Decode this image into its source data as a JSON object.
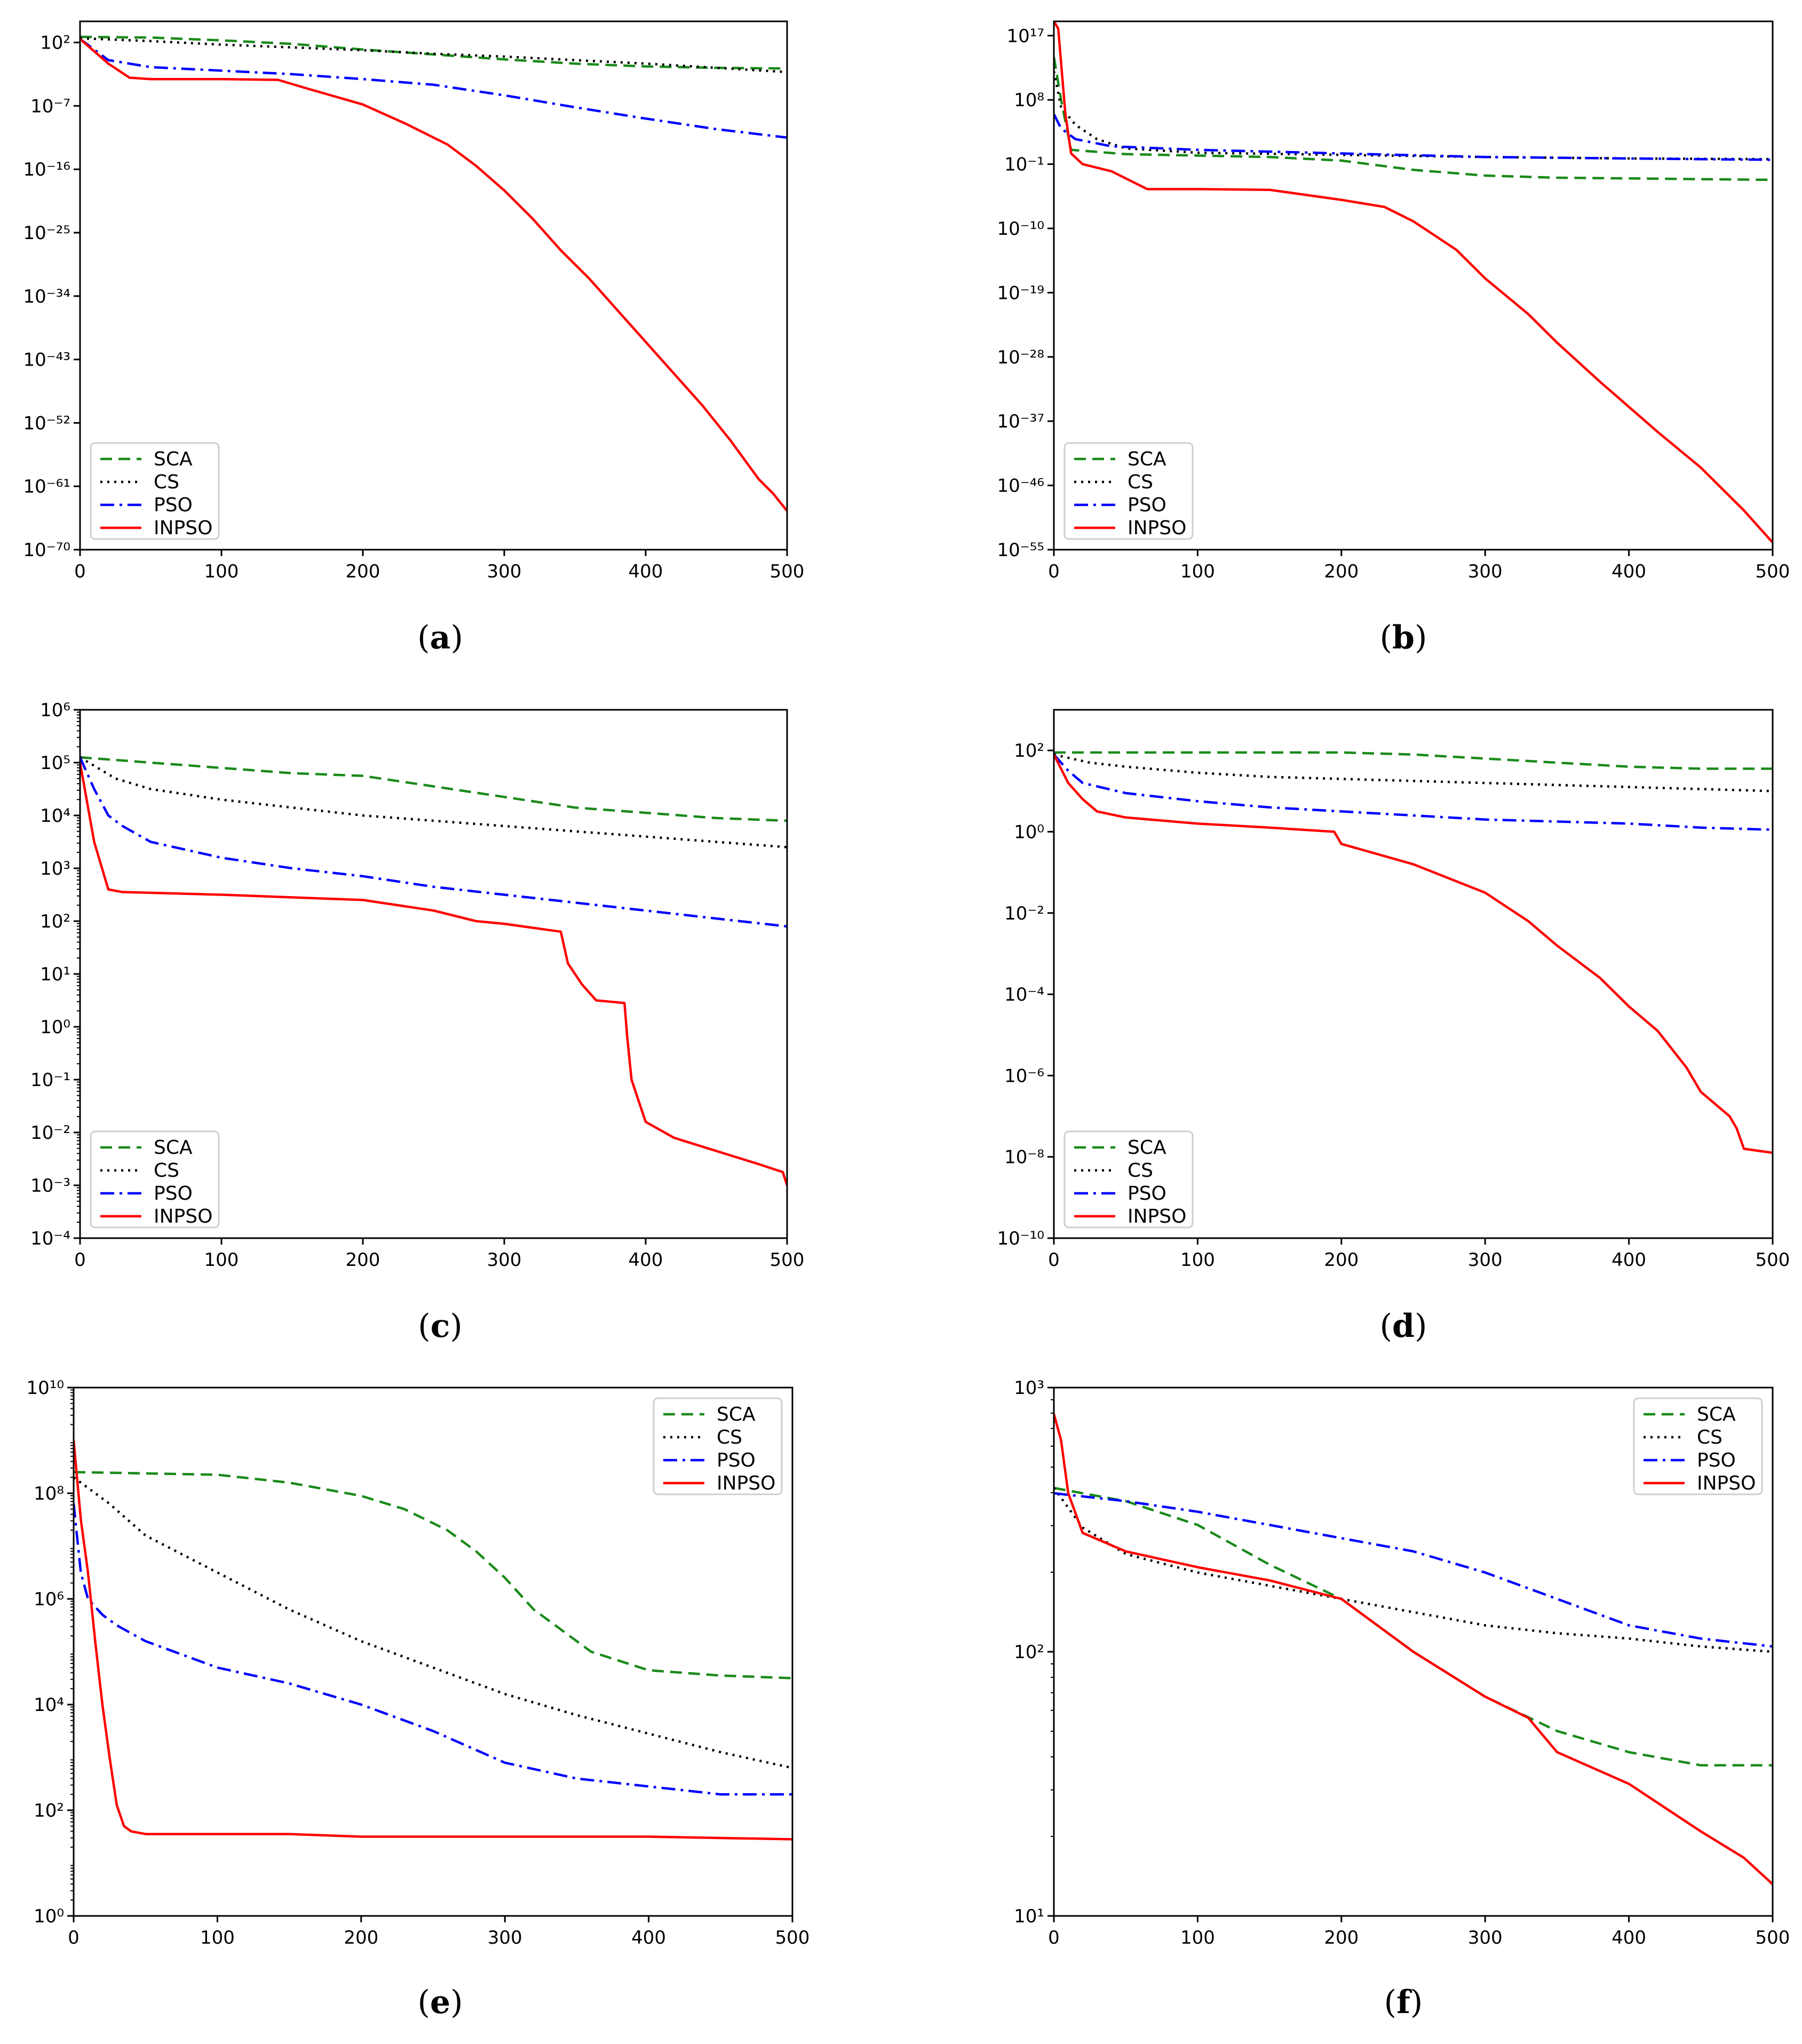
{
  "legend_labels": [
    "SCA",
    "CS",
    "PSO",
    "INPSO"
  ],
  "series_style": {
    "SCA": {
      "color": "#1a8a1a",
      "dash": "dashed"
    },
    "CS": {
      "color": "#000000",
      "dash": "dotted"
    },
    "PSO": {
      "color": "#0000ff",
      "dash": "dashdot"
    },
    "INPSO": {
      "color": "#ff0000",
      "dash": "solid"
    }
  },
  "chart_data": [
    {
      "id": "a",
      "type": "line",
      "caption": "a",
      "yscale": "log",
      "xlim": [
        0,
        500
      ],
      "ylim_exp": [
        -70,
        5
      ],
      "xticks": [
        0,
        100,
        200,
        300,
        400,
        500
      ],
      "yticks_exp": [
        2,
        -7,
        -16,
        -25,
        -34,
        -43,
        -52,
        -61,
        -70
      ],
      "legend_position": "lower-left",
      "series": [
        {
          "name": "SCA",
          "x": [
            0,
            50,
            100,
            150,
            200,
            250,
            300,
            350,
            400,
            450,
            500
          ],
          "log10y": [
            2.8,
            2.7,
            2.3,
            1.8,
            1.0,
            0.3,
            -0.4,
            -1.0,
            -1.4,
            -1.6,
            -1.7
          ]
        },
        {
          "name": "CS",
          "x": [
            0,
            50,
            100,
            150,
            200,
            250,
            300,
            350,
            400,
            450,
            500
          ],
          "log10y": [
            2.6,
            2.2,
            1.7,
            1.3,
            0.9,
            0.4,
            0.0,
            -0.5,
            -1.0,
            -1.6,
            -2.2
          ]
        },
        {
          "name": "PSO",
          "x": [
            0,
            20,
            50,
            100,
            150,
            200,
            250,
            300,
            350,
            400,
            450,
            500
          ],
          "log10y": [
            2.5,
            -0.5,
            -1.5,
            -2.0,
            -2.5,
            -3.2,
            -4.0,
            -5.5,
            -7.2,
            -8.8,
            -10.3,
            -11.5
          ]
        },
        {
          "name": "INPSO",
          "x": [
            0,
            20,
            35,
            50,
            100,
            140,
            160,
            200,
            230,
            260,
            280,
            300,
            320,
            340,
            360,
            380,
            400,
            420,
            440,
            460,
            480,
            490,
            500
          ],
          "log10y": [
            2.5,
            -1.0,
            -3.0,
            -3.2,
            -3.2,
            -3.3,
            -4.5,
            -6.8,
            -9.5,
            -12.5,
            -15.5,
            -19.0,
            -23.0,
            -27.5,
            -31.5,
            -36.0,
            -40.5,
            -45.0,
            -49.5,
            -54.5,
            -60.0,
            -62.0,
            -64.5
          ]
        }
      ]
    },
    {
      "id": "b",
      "type": "line",
      "caption": "b",
      "yscale": "log",
      "xlim": [
        0,
        500
      ],
      "ylim_exp": [
        -55,
        19
      ],
      "xticks": [
        0,
        100,
        200,
        300,
        400,
        500
      ],
      "yticks_exp": [
        17,
        8,
        -1,
        -10,
        -19,
        -28,
        -37,
        -46,
        -55
      ],
      "legend_position": "lower-left",
      "series": [
        {
          "name": "SCA",
          "x": [
            0,
            5,
            12,
            50,
            100,
            150,
            200,
            250,
            300,
            350,
            400,
            450,
            500
          ],
          "log10y": [
            14.0,
            8.0,
            1.0,
            0.4,
            0.2,
            0.0,
            -0.5,
            -1.8,
            -2.6,
            -2.9,
            -3.0,
            -3.1,
            -3.2
          ]
        },
        {
          "name": "CS",
          "x": [
            0,
            5,
            15,
            30,
            50,
            100,
            200,
            300,
            400,
            500
          ],
          "log10y": [
            12.0,
            7.0,
            4.5,
            2.5,
            1.2,
            0.6,
            0.3,
            0.0,
            -0.2,
            -0.3
          ]
        },
        {
          "name": "PSO",
          "x": [
            0,
            5,
            15,
            40,
            100,
            200,
            300,
            400,
            500
          ],
          "log10y": [
            6.0,
            4.0,
            2.5,
            1.5,
            1.0,
            0.5,
            0.0,
            -0.2,
            -0.4
          ]
        },
        {
          "name": "INPSO",
          "x": [
            0,
            3,
            8,
            12,
            20,
            40,
            65,
            100,
            150,
            200,
            230,
            250,
            280,
            300,
            330,
            350,
            380,
            400,
            420,
            450,
            480,
            500
          ],
          "log10y": [
            19.0,
            18.0,
            6.0,
            0.5,
            -1.0,
            -2.0,
            -4.5,
            -4.5,
            -4.6,
            -6.0,
            -7.0,
            -9.0,
            -13.0,
            -17.0,
            -22.0,
            -26.0,
            -31.5,
            -35.0,
            -38.5,
            -43.5,
            -49.5,
            -54.0
          ]
        }
      ]
    },
    {
      "id": "c",
      "type": "line",
      "caption": "c",
      "yscale": "log",
      "xlim": [
        0,
        500
      ],
      "ylim_exp": [
        -4,
        6
      ],
      "xticks": [
        0,
        100,
        200,
        300,
        400,
        500
      ],
      "yticks_exp": [
        6,
        5,
        4,
        3,
        2,
        1,
        0,
        -1,
        -2,
        -3,
        -4
      ],
      "legend_position": "lower-left",
      "series": [
        {
          "name": "SCA",
          "x": [
            0,
            50,
            100,
            150,
            200,
            250,
            300,
            350,
            400,
            450,
            500
          ],
          "log10y": [
            5.1,
            5.0,
            4.9,
            4.8,
            4.75,
            4.55,
            4.35,
            4.15,
            4.05,
            3.95,
            3.9
          ]
        },
        {
          "name": "CS",
          "x": [
            0,
            25,
            50,
            100,
            150,
            200,
            250,
            300,
            350,
            400,
            450,
            500
          ],
          "log10y": [
            5.1,
            4.7,
            4.5,
            4.3,
            4.15,
            4.0,
            3.9,
            3.8,
            3.7,
            3.6,
            3.5,
            3.4
          ]
        },
        {
          "name": "PSO",
          "x": [
            0,
            10,
            20,
            30,
            50,
            100,
            150,
            200,
            250,
            300,
            350,
            400,
            450,
            500
          ],
          "log10y": [
            5.1,
            4.5,
            4.0,
            3.8,
            3.5,
            3.2,
            3.0,
            2.85,
            2.65,
            2.5,
            2.35,
            2.2,
            2.05,
            1.9
          ]
        },
        {
          "name": "INPSO",
          "x": [
            0,
            10,
            20,
            30,
            100,
            200,
            250,
            280,
            300,
            340,
            345,
            355,
            365,
            385,
            387,
            390,
            400,
            420,
            450,
            480,
            497,
            500
          ],
          "log10y": [
            5.0,
            3.5,
            2.6,
            2.55,
            2.5,
            2.4,
            2.2,
            2.0,
            1.95,
            1.8,
            1.2,
            0.8,
            0.5,
            0.45,
            -0.2,
            -1.0,
            -1.8,
            -2.1,
            -2.35,
            -2.6,
            -2.75,
            -3.0
          ]
        }
      ]
    },
    {
      "id": "d",
      "type": "line",
      "caption": "d",
      "yscale": "log",
      "xlim": [
        0,
        500
      ],
      "ylim_exp": [
        -10,
        3
      ],
      "xticks": [
        0,
        100,
        200,
        300,
        400,
        500
      ],
      "yticks_exp": [
        2,
        0,
        -2,
        -4,
        -6,
        -8,
        -10
      ],
      "legend_position": "lower-left",
      "series": [
        {
          "name": "SCA",
          "x": [
            0,
            100,
            200,
            250,
            300,
            350,
            400,
            450,
            500
          ],
          "log10y": [
            1.95,
            1.95,
            1.95,
            1.9,
            1.8,
            1.7,
            1.6,
            1.55,
            1.55
          ]
        },
        {
          "name": "CS",
          "x": [
            0,
            25,
            50,
            100,
            150,
            200,
            250,
            300,
            350,
            400,
            450,
            500
          ],
          "log10y": [
            1.9,
            1.7,
            1.6,
            1.45,
            1.35,
            1.3,
            1.25,
            1.2,
            1.15,
            1.1,
            1.05,
            1.0
          ]
        },
        {
          "name": "PSO",
          "x": [
            0,
            10,
            20,
            50,
            100,
            150,
            200,
            250,
            300,
            350,
            400,
            450,
            500
          ],
          "log10y": [
            1.9,
            1.5,
            1.2,
            0.95,
            0.75,
            0.6,
            0.5,
            0.4,
            0.3,
            0.25,
            0.2,
            0.1,
            0.05
          ]
        },
        {
          "name": "INPSO",
          "x": [
            0,
            10,
            20,
            30,
            50,
            100,
            150,
            195,
            200,
            250,
            300,
            330,
            350,
            380,
            400,
            420,
            440,
            450,
            470,
            475,
            480,
            500
          ],
          "log10y": [
            1.9,
            1.2,
            0.8,
            0.5,
            0.35,
            0.2,
            0.1,
            0.0,
            -0.3,
            -0.8,
            -1.5,
            -2.2,
            -2.8,
            -3.6,
            -4.3,
            -4.9,
            -5.8,
            -6.4,
            -7.0,
            -7.3,
            -7.8,
            -7.9
          ]
        }
      ]
    },
    {
      "id": "e",
      "type": "line",
      "caption": "e",
      "yscale": "log",
      "xlim": [
        0,
        500
      ],
      "ylim_exp": [
        0,
        10
      ],
      "xticks": [
        0,
        100,
        200,
        300,
        400,
        500
      ],
      "yticks_exp": [
        10,
        8,
        6,
        4,
        2,
        0
      ],
      "legend_position": "top-right",
      "series": [
        {
          "name": "SCA",
          "x": [
            0,
            100,
            150,
            200,
            230,
            260,
            280,
            300,
            320,
            340,
            360,
            400,
            450,
            500
          ],
          "log10y": [
            8.4,
            8.35,
            8.2,
            7.95,
            7.7,
            7.3,
            6.9,
            6.4,
            5.8,
            5.4,
            5.0,
            4.65,
            4.55,
            4.5
          ]
        },
        {
          "name": "CS",
          "x": [
            0,
            25,
            50,
            100,
            150,
            200,
            250,
            300,
            350,
            400,
            450,
            500
          ],
          "log10y": [
            8.3,
            7.8,
            7.2,
            6.5,
            5.8,
            5.2,
            4.7,
            4.2,
            3.8,
            3.45,
            3.1,
            2.8
          ]
        },
        {
          "name": "PSO",
          "x": [
            0,
            5,
            10,
            20,
            30,
            50,
            100,
            150,
            200,
            250,
            300,
            350,
            400,
            450,
            500
          ],
          "log10y": [
            7.8,
            6.5,
            6.0,
            5.7,
            5.5,
            5.2,
            4.7,
            4.4,
            4.0,
            3.5,
            2.9,
            2.6,
            2.45,
            2.3,
            2.3
          ]
        },
        {
          "name": "INPSO",
          "x": [
            0,
            5,
            10,
            15,
            20,
            25,
            30,
            35,
            40,
            50,
            100,
            150,
            200,
            300,
            400,
            500
          ],
          "log10y": [
            9.0,
            7.5,
            6.5,
            5.2,
            4.0,
            3.0,
            2.1,
            1.7,
            1.6,
            1.55,
            1.55,
            1.55,
            1.5,
            1.5,
            1.5,
            1.45
          ]
        }
      ]
    },
    {
      "id": "f",
      "type": "line",
      "caption": "f",
      "yscale": "log",
      "xlim": [
        0,
        500
      ],
      "ylim_exp": [
        1,
        3
      ],
      "xticks": [
        0,
        100,
        200,
        300,
        400,
        500
      ],
      "yticks_exp": [
        3,
        2,
        1
      ],
      "legend_position": "top-right",
      "series": [
        {
          "name": "SCA",
          "x": [
            0,
            50,
            100,
            150,
            200,
            250,
            300,
            350,
            400,
            450,
            500
          ],
          "log10y": [
            2.62,
            2.57,
            2.48,
            2.33,
            2.2,
            2.0,
            1.83,
            1.7,
            1.62,
            1.57,
            1.57
          ]
        },
        {
          "name": "CS",
          "x": [
            0,
            20,
            50,
            100,
            150,
            200,
            250,
            300,
            350,
            400,
            450,
            500
          ],
          "log10y": [
            2.62,
            2.47,
            2.37,
            2.3,
            2.25,
            2.2,
            2.15,
            2.1,
            2.07,
            2.05,
            2.02,
            2.0
          ]
        },
        {
          "name": "PSO",
          "x": [
            0,
            50,
            100,
            150,
            200,
            250,
            300,
            350,
            400,
            450,
            500
          ],
          "log10y": [
            2.6,
            2.57,
            2.53,
            2.48,
            2.43,
            2.38,
            2.3,
            2.2,
            2.1,
            2.05,
            2.02
          ]
        },
        {
          "name": "INPSO",
          "x": [
            0,
            5,
            10,
            20,
            50,
            100,
            150,
            200,
            250,
            300,
            330,
            350,
            400,
            450,
            480,
            500
          ],
          "log10y": [
            2.9,
            2.8,
            2.6,
            2.45,
            2.38,
            2.32,
            2.27,
            2.2,
            2.0,
            1.83,
            1.75,
            1.62,
            1.5,
            1.32,
            1.22,
            1.12
          ]
        }
      ]
    }
  ]
}
